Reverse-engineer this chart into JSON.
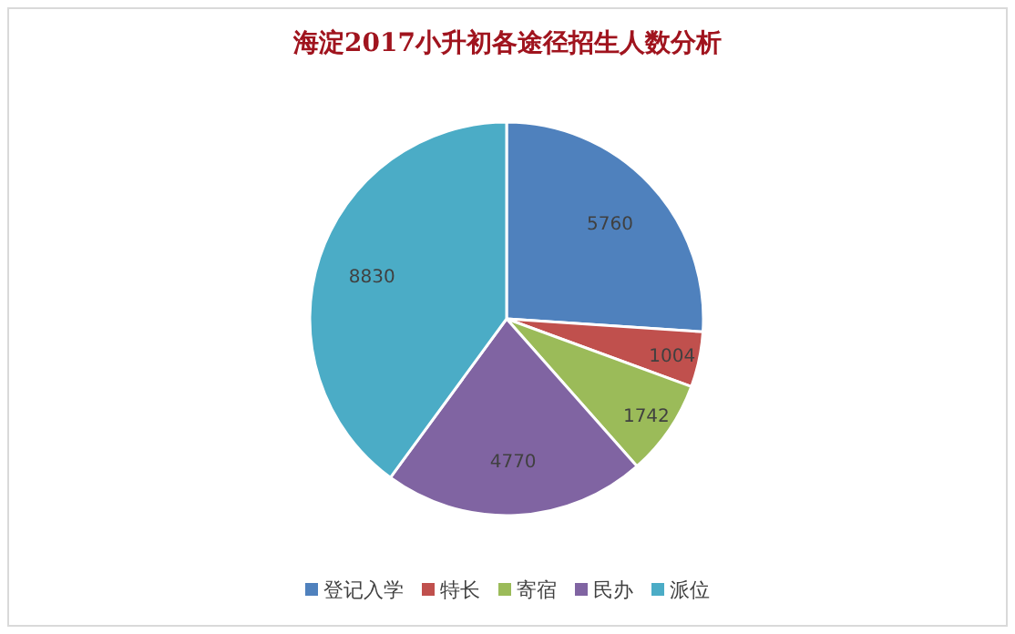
{
  "chart_data": {
    "type": "pie",
    "title": "海淀2017小升初各途径招生人数分析",
    "categories": [
      "登记入学",
      "特长",
      "寄宿",
      "民办",
      "派位"
    ],
    "values": [
      5760,
      1004,
      1742,
      4770,
      8830
    ],
    "colors": [
      "#4f81bd",
      "#c0504d",
      "#9bbb59",
      "#8064a2",
      "#4bacc6"
    ],
    "data_labels": true,
    "legend": "bottom"
  }
}
